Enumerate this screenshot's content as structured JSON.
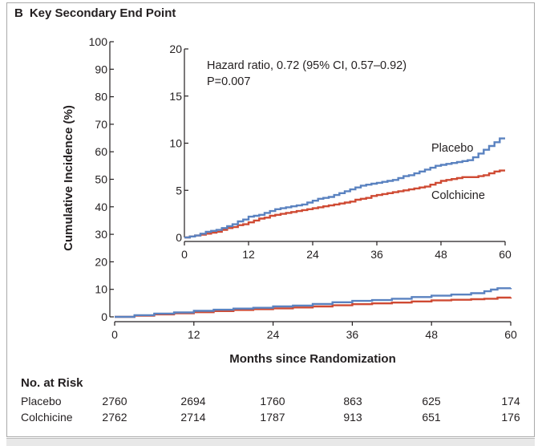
{
  "panel": {
    "letter": "B",
    "title": "Key Secondary End Point"
  },
  "colors": {
    "placebo": "#5a82c0",
    "colchicine": "#cf4a33",
    "axis": "#231f20"
  },
  "chart_data": [
    {
      "name": "main",
      "type": "line",
      "title": "Key Secondary End Point",
      "xlabel": "Months since Randomization",
      "ylabel": "Cumulative Incidence (%)",
      "xlim": [
        0,
        60
      ],
      "ylim": [
        0,
        100
      ],
      "xticks": [
        0,
        12,
        24,
        36,
        48,
        60
      ],
      "yticks": [
        0,
        10,
        20,
        30,
        40,
        50,
        60,
        70,
        80,
        90,
        100
      ],
      "series": [
        {
          "name": "Placebo",
          "x": [
            0,
            3,
            6,
            9,
            12,
            15,
            18,
            21,
            24,
            27,
            30,
            33,
            36,
            39,
            42,
            45,
            48,
            51,
            54,
            56,
            57,
            58,
            60
          ],
          "y": [
            0,
            0.6,
            1.2,
            1.6,
            2.2,
            2.6,
            3.0,
            3.3,
            3.8,
            4.1,
            4.7,
            5.3,
            5.8,
            6.1,
            6.6,
            7.2,
            7.7,
            8.1,
            8.6,
            9.3,
            9.9,
            10.4,
            10.5
          ]
        },
        {
          "name": "Colchicine",
          "x": [
            0,
            3,
            6,
            9,
            12,
            15,
            18,
            21,
            24,
            27,
            30,
            33,
            36,
            39,
            42,
            45,
            48,
            51,
            54,
            56,
            58,
            60
          ],
          "y": [
            0,
            0.4,
            0.9,
            1.3,
            1.7,
            2.1,
            2.5,
            2.8,
            3.1,
            3.4,
            3.8,
            4.2,
            4.6,
            4.9,
            5.2,
            5.6,
            6.0,
            6.2,
            6.4,
            6.6,
            7.0,
            7.1
          ]
        }
      ]
    },
    {
      "name": "inset",
      "type": "line",
      "annotation": [
        "Hazard ratio, 0.72 (95% CI, 0.57–0.92)",
        "P=0.007"
      ],
      "xlim": [
        0,
        60
      ],
      "ylim": [
        0,
        20
      ],
      "xticks": [
        0,
        12,
        24,
        36,
        48,
        60
      ],
      "yticks": [
        0,
        5,
        10,
        15,
        20
      ],
      "series": [
        {
          "name": "Placebo",
          "x": [
            0,
            1,
            2,
            3,
            4,
            5,
            6,
            7,
            8,
            9,
            10,
            11,
            12,
            13,
            14,
            15,
            16,
            17,
            18,
            19,
            20,
            21,
            22,
            23,
            24,
            25,
            26,
            27,
            28,
            29,
            30,
            31,
            32,
            33,
            34,
            35,
            36,
            37,
            38,
            39,
            40,
            41,
            42,
            43,
            44,
            45,
            46,
            47,
            48,
            49,
            50,
            51,
            52,
            53,
            54,
            55,
            56,
            57,
            58,
            59,
            60
          ],
          "y": [
            0,
            0.1,
            0.2,
            0.4,
            0.6,
            0.7,
            0.8,
            1.0,
            1.2,
            1.4,
            1.7,
            1.9,
            2.2,
            2.3,
            2.4,
            2.6,
            2.8,
            3.0,
            3.1,
            3.2,
            3.3,
            3.4,
            3.5,
            3.7,
            3.9,
            4.1,
            4.2,
            4.3,
            4.5,
            4.7,
            4.9,
            5.1,
            5.3,
            5.5,
            5.6,
            5.7,
            5.8,
            5.9,
            6.0,
            6.1,
            6.3,
            6.5,
            6.6,
            6.8,
            7.0,
            7.2,
            7.4,
            7.6,
            7.7,
            7.8,
            7.9,
            8.0,
            8.1,
            8.2,
            8.5,
            8.9,
            9.3,
            9.7,
            10.1,
            10.5,
            10.5
          ]
        },
        {
          "name": "Colchicine",
          "x": [
            0,
            1,
            2,
            3,
            4,
            5,
            6,
            7,
            8,
            9,
            10,
            11,
            12,
            13,
            14,
            15,
            16,
            17,
            18,
            19,
            20,
            21,
            22,
            23,
            24,
            25,
            26,
            27,
            28,
            29,
            30,
            31,
            32,
            33,
            34,
            35,
            36,
            37,
            38,
            39,
            40,
            41,
            42,
            43,
            44,
            45,
            46,
            47,
            48,
            49,
            50,
            51,
            52,
            53,
            54,
            55,
            56,
            57,
            58,
            59,
            60
          ],
          "y": [
            0,
            0.1,
            0.2,
            0.3,
            0.4,
            0.5,
            0.6,
            0.8,
            1.0,
            1.1,
            1.3,
            1.4,
            1.6,
            1.8,
            2.0,
            2.1,
            2.3,
            2.4,
            2.5,
            2.6,
            2.7,
            2.8,
            2.9,
            3.0,
            3.1,
            3.2,
            3.3,
            3.4,
            3.5,
            3.6,
            3.7,
            3.8,
            4.0,
            4.1,
            4.2,
            4.4,
            4.5,
            4.6,
            4.7,
            4.8,
            4.9,
            5.0,
            5.1,
            5.2,
            5.3,
            5.4,
            5.6,
            5.8,
            6.0,
            6.1,
            6.2,
            6.3,
            6.4,
            6.4,
            6.4,
            6.5,
            6.6,
            6.8,
            7.0,
            7.1,
            7.1
          ]
        }
      ],
      "series_labels": [
        "Placebo",
        "Colchicine"
      ]
    }
  ],
  "risk_table": {
    "title": "No. at Risk",
    "columns": [
      "0",
      "12",
      "24",
      "36",
      "48",
      "60"
    ],
    "rows": [
      {
        "label": "Placebo",
        "values": [
          "2760",
          "2694",
          "1760",
          "863",
          "625",
          "174"
        ]
      },
      {
        "label": "Colchicine",
        "values": [
          "2762",
          "2714",
          "1787",
          "913",
          "651",
          "176"
        ]
      }
    ]
  }
}
